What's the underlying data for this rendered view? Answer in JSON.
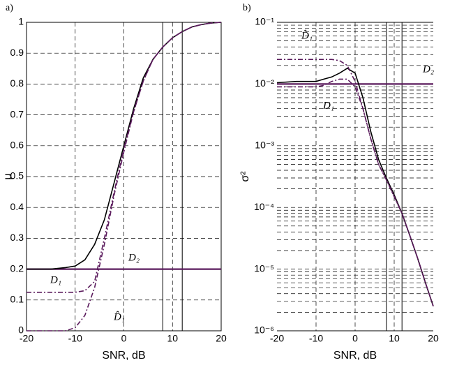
{
  "chart_data": [
    {
      "type": "line",
      "panel_label": "a)",
      "xlabel": "SNR, dB",
      "ylabel": "μ",
      "x": [
        -20,
        -15,
        -12,
        -10,
        -8,
        -6,
        -4,
        -2,
        0,
        2,
        4,
        6,
        8,
        10,
        12,
        14,
        16,
        18,
        20
      ],
      "xlim": [
        -20,
        20
      ],
      "xticks": [
        -20,
        -10,
        0,
        10,
        20
      ],
      "ylim": [
        0,
        1
      ],
      "yticks": [
        0,
        0.1,
        0.2,
        0.3,
        0.4,
        0.5,
        0.6,
        0.7,
        0.8,
        0.9,
        1
      ],
      "log_y": false,
      "grid": true,
      "vlines": [
        8,
        12
      ],
      "series": [
        {
          "color": "#5a1a5c",
          "style": "solid",
          "values": [
            0.2,
            0.2,
            0.2,
            0.2,
            0.2,
            0.2,
            0.2,
            0.2,
            0.2,
            0.2,
            0.2,
            0.2,
            0.2,
            0.2,
            0.2,
            0.2,
            0.2,
            0.2,
            0.2
          ]
        },
        {
          "color": "#000000",
          "style": "solid",
          "values": [
            0.2,
            0.2,
            0.205,
            0.21,
            0.23,
            0.28,
            0.36,
            0.48,
            0.6,
            0.72,
            0.82,
            0.88,
            0.92,
            0.95,
            0.97,
            0.985,
            0.993,
            0.998,
            1
          ]
        },
        {
          "color": "#5a1a5c",
          "style": "dashdot",
          "values": [
            0.125,
            0.125,
            0.125,
            0.125,
            0.13,
            0.16,
            0.3,
            0.45,
            0.59,
            0.71,
            0.81,
            0.88,
            0.92,
            0.95,
            0.97,
            0.985,
            0.993,
            0.998,
            1
          ]
        },
        {
          "color": "#5a1a5c",
          "style": "dashdot",
          "values": [
            0,
            0,
            0,
            0.01,
            0.05,
            0.14,
            0.28,
            0.44,
            0.58,
            0.71,
            0.81,
            0.88,
            0.92,
            0.95,
            0.97,
            0.985,
            0.993,
            0.998,
            1
          ]
        }
      ],
      "annotations": [
        "D₂",
        "D₁",
        "D̂₁"
      ]
    },
    {
      "type": "line",
      "panel_label": "b)",
      "xlabel": "SNR, dB",
      "ylabel": "σ²",
      "x": [
        -20,
        -15,
        -12,
        -10,
        -8,
        -6,
        -4,
        -2,
        0,
        2,
        4,
        6,
        8,
        10,
        12,
        14,
        16,
        18,
        20
      ],
      "xlim": [
        -20,
        20
      ],
      "xticks": [
        -20,
        -10,
        0,
        10,
        20
      ],
      "ylim": [
        1e-06,
        0.1
      ],
      "yticks": [
        {
          "value": 1e-06,
          "label": "10⁻⁶"
        },
        {
          "value": 1e-05,
          "label": "10⁻⁵"
        },
        {
          "value": 0.0001,
          "label": "10⁻⁴"
        },
        {
          "value": 0.001,
          "label": "10⁻³"
        },
        {
          "value": 0.01,
          "label": "10⁻²"
        },
        {
          "value": 0.1,
          "label": "10⁻¹"
        }
      ],
      "yminorticks": [
        2e-06,
        3e-06,
        4e-06,
        5e-06,
        6e-06,
        7e-06,
        8e-06,
        9e-06,
        2e-05,
        3e-05,
        4e-05,
        5e-05,
        6e-05,
        7e-05,
        8e-05,
        9e-05,
        0.0002,
        0.0003,
        0.0004,
        0.0005,
        0.0006,
        0.0007,
        0.0008,
        0.0009,
        0.002,
        0.003,
        0.004,
        0.005,
        0.006,
        0.007,
        0.008,
        0.009,
        0.02,
        0.03,
        0.04,
        0.05,
        0.06,
        0.07,
        0.08,
        0.09
      ],
      "log_y": true,
      "grid": true,
      "vlines": [
        8,
        12
      ],
      "series": [
        {
          "color": "#5a1a5c",
          "style": "solid",
          "values": [
            0.01,
            0.01,
            0.01,
            0.01,
            0.01,
            0.01,
            0.01,
            0.01,
            0.01,
            0.01,
            0.01,
            0.01,
            0.01,
            0.01,
            0.01,
            0.01,
            0.01,
            0.01,
            0.01
          ]
        },
        {
          "color": "#000000",
          "style": "solid",
          "values": [
            0.0105,
            0.011,
            0.011,
            0.011,
            0.012,
            0.013,
            0.015,
            0.018,
            0.015,
            0.006,
            0.0017,
            0.0006,
            0.0003,
            0.00016,
            8e-05,
            3.5e-05,
            1.5e-05,
            6e-06,
            2.5e-06
          ]
        },
        {
          "color": "#5a1a5c",
          "style": "dashdot",
          "values": [
            0.025,
            0.025,
            0.025,
            0.025,
            0.025,
            0.025,
            0.024,
            0.02,
            0.011,
            0.004,
            0.0013,
            0.0005,
            0.00028,
            0.00015,
            8e-05,
            3.5e-05,
            1.5e-05,
            6e-06,
            2.5e-06
          ]
        },
        {
          "color": "#5a1a5c",
          "style": "dashdot",
          "values": [
            0.009,
            0.009,
            0.009,
            0.009,
            0.0095,
            0.011,
            0.012,
            0.012,
            0.009,
            0.004,
            0.0013,
            0.0005,
            0.00028,
            0.00015,
            8e-05,
            3.5e-05,
            1.5e-05,
            6e-06,
            2.5e-06
          ]
        }
      ],
      "annotations": [
        "D̂₁",
        "D₂",
        "D₁"
      ]
    }
  ]
}
